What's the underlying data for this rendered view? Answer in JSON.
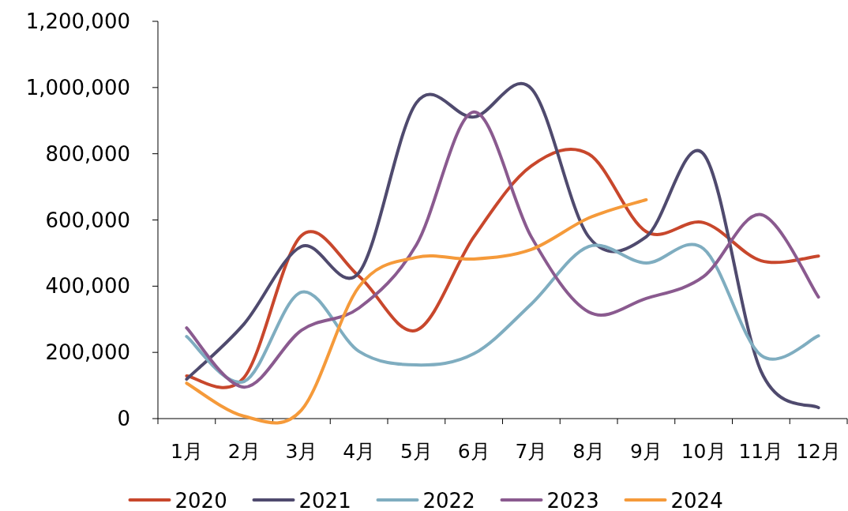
{
  "chart_data": {
    "type": "line",
    "categories": [
      "1月",
      "2月",
      "3月",
      "4月",
      "5月",
      "6月",
      "7月",
      "8月",
      "9月",
      "10月",
      "11月",
      "12月"
    ],
    "ylim": [
      0,
      1200000
    ],
    "yticks": [
      {
        "value": 0,
        "label": "0"
      },
      {
        "value": 200000,
        "label": "200,000"
      },
      {
        "value": 400000,
        "label": "400,000"
      },
      {
        "value": 600000,
        "label": "600,000"
      },
      {
        "value": 800000,
        "label": "800,000"
      },
      {
        "value": 1000000,
        "label": "1,000,000"
      },
      {
        "value": 1200000,
        "label": "1,200,000"
      }
    ],
    "grid": false,
    "legend": "bottom",
    "marker": "none",
    "series": [
      {
        "name": "2020",
        "color": "#c8472c",
        "values": [
          129000,
          124000,
          553000,
          430000,
          267000,
          549000,
          763000,
          799000,
          565000,
          592000,
          477000,
          491000
        ]
      },
      {
        "name": "2021",
        "color": "#4f4a6e",
        "values": [
          119000,
          286000,
          520000,
          441000,
          954000,
          911000,
          997000,
          549000,
          549000,
          799000,
          143000,
          33000
        ]
      },
      {
        "name": "2022",
        "color": "#7fadc0",
        "values": [
          248000,
          112000,
          382000,
          203000,
          162000,
          196000,
          346000,
          520000,
          470000,
          513000,
          191000,
          250000
        ]
      },
      {
        "name": "2023",
        "color": "#8a5a8f",
        "values": [
          274000,
          95000,
          267000,
          334000,
          525000,
          926000,
          549000,
          322000,
          363000,
          429000,
          616000,
          367000
        ]
      },
      {
        "name": "2024",
        "color": "#f59a3a",
        "values": [
          107000,
          7000,
          26000,
          398000,
          487000,
          482000,
          511000,
          606000,
          661000,
          null,
          null,
          null
        ]
      }
    ]
  }
}
